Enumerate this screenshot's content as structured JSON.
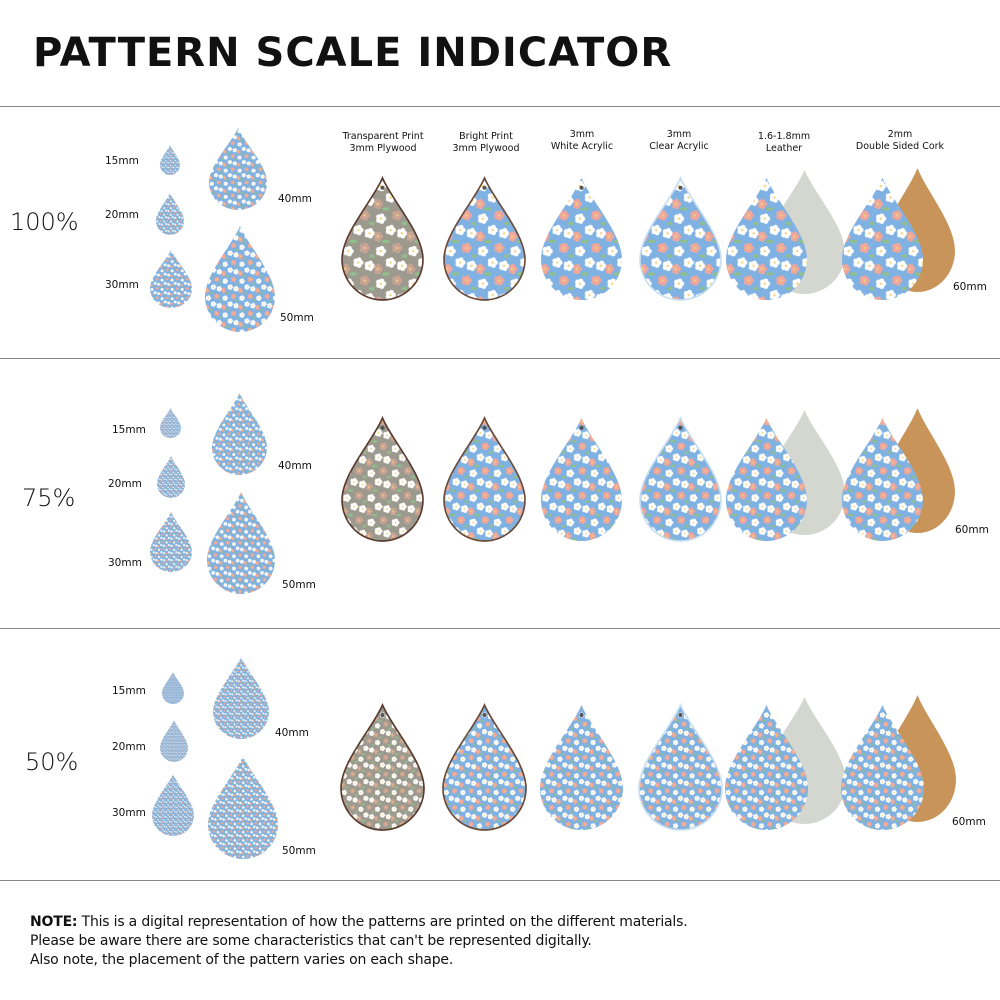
{
  "title": "PATTERN SCALE INDICATOR",
  "materials": [
    {
      "line1": "Transparent Print",
      "line2": "3mm Plywood"
    },
    {
      "line1": "Bright Print",
      "line2": "3mm Plywood"
    },
    {
      "line1": "3mm",
      "line2": "White Acrylic"
    },
    {
      "line1": "3mm",
      "line2": "Clear Acrylic"
    },
    {
      "line1": "1.6-1.8mm",
      "line2": "Leather"
    },
    {
      "line1": "2mm",
      "line2": "Double Sided Cork"
    }
  ],
  "sections": [
    {
      "scale": "100%",
      "sizes": [
        "15mm",
        "20mm",
        "30mm",
        "40mm",
        "50mm"
      ],
      "material_size": "60mm"
    },
    {
      "scale": "75%",
      "sizes": [
        "15mm",
        "20mm",
        "30mm",
        "40mm",
        "50mm"
      ],
      "material_size": "60mm"
    },
    {
      "scale": "50%",
      "sizes": [
        "15mm",
        "20mm",
        "30mm",
        "40mm",
        "50mm"
      ],
      "material_size": "60mm"
    }
  ],
  "note": {
    "bold": "NOTE:",
    "line1": " This is a digital representation of how the patterns are printed on the different materials.",
    "line2": "Please be aware there are some characteristics that can't be represented digitally.",
    "line3": "Also note, the placement of the pattern varies on each shape."
  },
  "colors": {
    "pattern_blue": "#7fb1e2",
    "flower_white": "#ffffff",
    "flower_pink": "#eea79a",
    "leaf_green": "#8fbf8a",
    "plywood": "#9c9a8e",
    "suede": "#d4d6d0",
    "cork": "#c8945a"
  }
}
